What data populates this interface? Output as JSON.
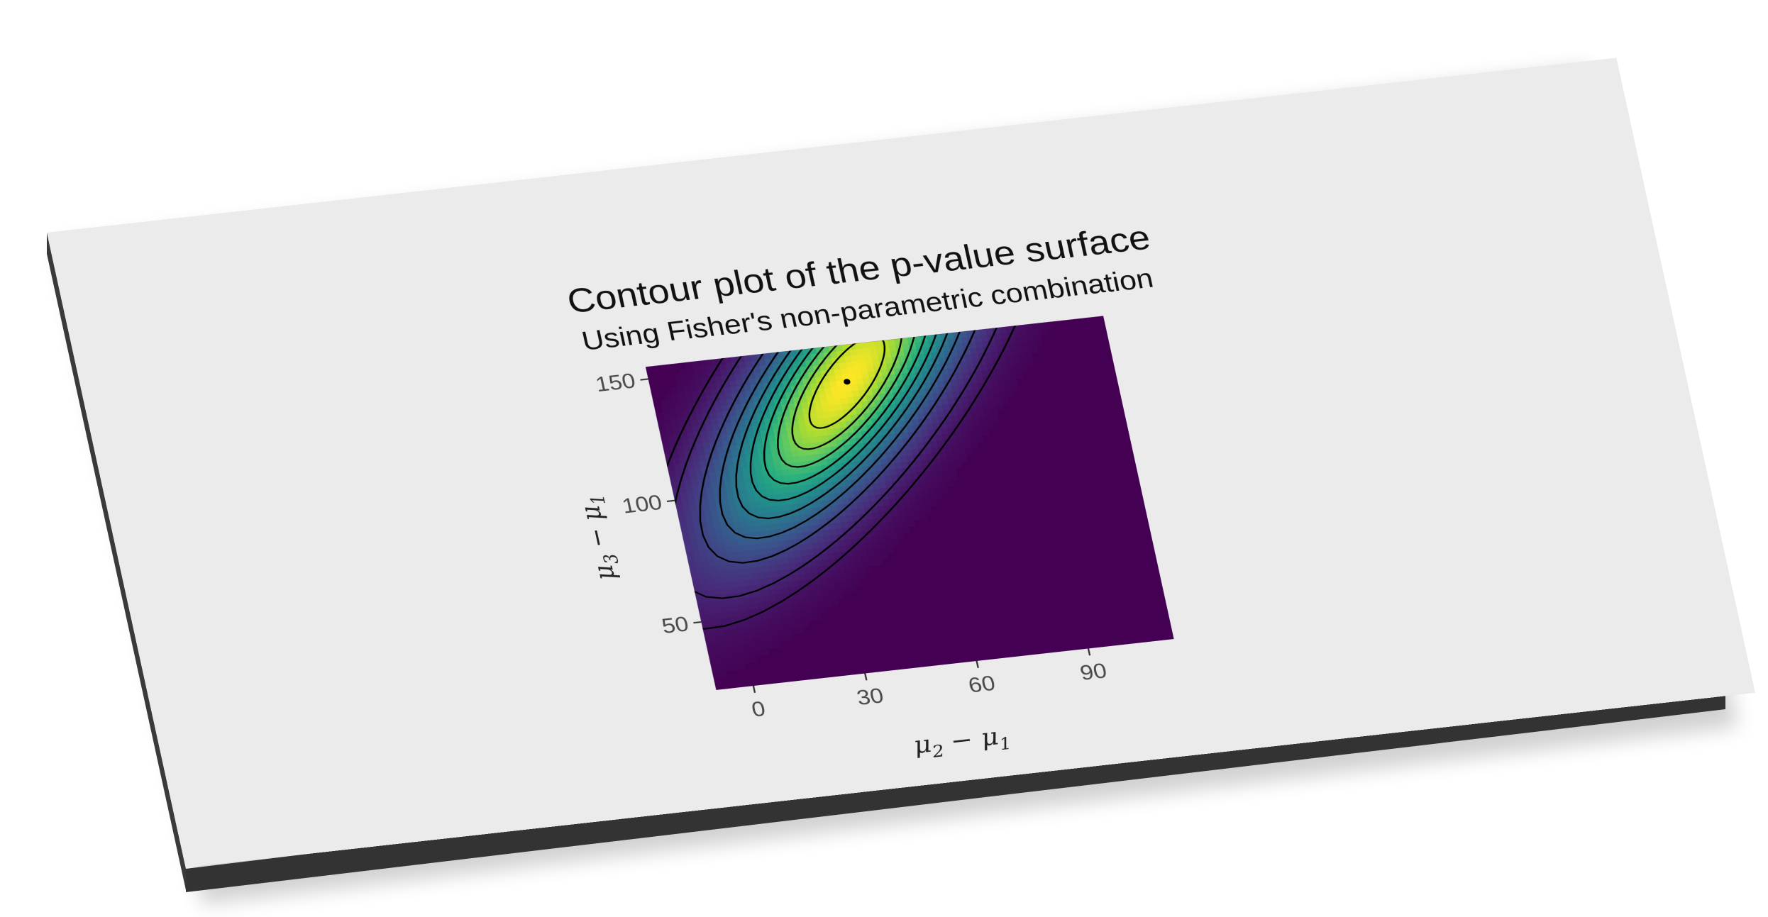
{
  "chart_data": {
    "type": "heatmap",
    "title": "Contour plot of the p-value surface",
    "subtitle": "Using Fisher's non-parametric combination",
    "xlabel": "μ2 − μ1",
    "ylabel": "μ3 − μ1",
    "xlabel_parts": {
      "main": "μ",
      "sub1": "2",
      "minus": " − ",
      "main2": "μ",
      "sub2": "1"
    },
    "ylabel_parts": {
      "main": "μ",
      "sub1": "3",
      "minus": " − ",
      "main2": "μ",
      "sub2": "1"
    },
    "x_ticks": [
      {
        "value": 0,
        "label": "0"
      },
      {
        "value": 30,
        "label": "30"
      },
      {
        "value": 60,
        "label": "60"
      },
      {
        "value": 90,
        "label": "90"
      }
    ],
    "y_ticks": [
      {
        "value": 50,
        "label": "50"
      },
      {
        "value": 100,
        "label": "100"
      },
      {
        "value": 150,
        "label": "150"
      }
    ],
    "xlim": [
      -10,
      113
    ],
    "ylim": [
      22,
      155
    ],
    "peak": {
      "x": 42,
      "y": 140,
      "p": 1.0
    },
    "spread": {
      "sx": 26,
      "sy": 38,
      "rho": 0.78
    },
    "contour_levels": [
      0.05,
      0.1,
      0.2,
      0.3,
      0.4,
      0.5,
      0.6,
      0.7,
      0.8,
      0.9
    ],
    "colorscale": "viridis",
    "grid": false,
    "legend": "none"
  }
}
